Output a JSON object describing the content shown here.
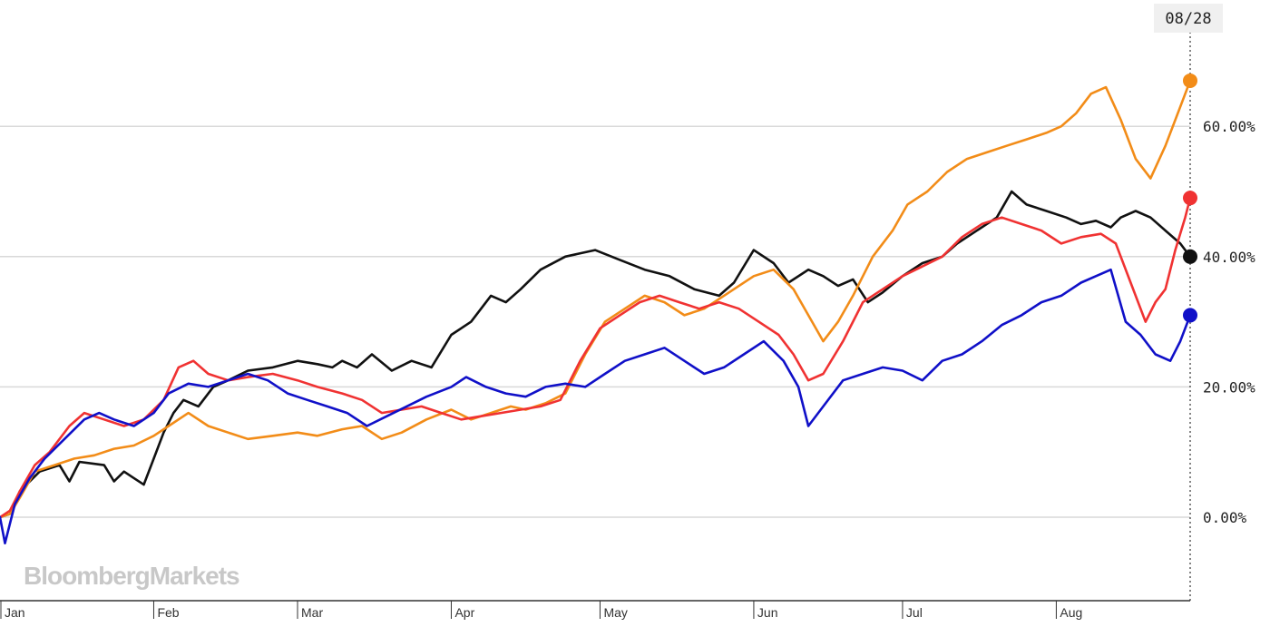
{
  "watermark": "BloombergMarkets",
  "cursor_date": "08/28",
  "chart_data": {
    "type": "line",
    "title": "",
    "xlabel": "",
    "ylabel": "",
    "x_tick_labels": [
      "Jan",
      "Feb",
      "Mar",
      "Apr",
      "May",
      "Jun",
      "Jul",
      "Aug"
    ],
    "y_tick_labels": [
      "0.00%",
      "20.00%",
      "40.00%",
      "60.00%"
    ],
    "y_ticks": [
      0,
      20,
      40,
      60
    ],
    "ylim": [
      -13,
      80
    ],
    "xlim": [
      "01-01",
      "08-28"
    ],
    "grid": true,
    "series": [
      {
        "color": "#111111",
        "points": [
          [
            "01-01",
            0
          ],
          [
            "01-03",
            0.5
          ],
          [
            "01-05",
            4
          ],
          [
            "01-09",
            7
          ],
          [
            "01-13",
            8
          ],
          [
            "01-15",
            5.5
          ],
          [
            "01-17",
            8.5
          ],
          [
            "01-22",
            8
          ],
          [
            "01-24",
            5.5
          ],
          [
            "01-26",
            7
          ],
          [
            "01-28",
            6
          ],
          [
            "01-30",
            5
          ],
          [
            "02-01",
            9
          ],
          [
            "02-03",
            13
          ],
          [
            "02-05",
            16
          ],
          [
            "02-07",
            18
          ],
          [
            "02-10",
            17
          ],
          [
            "02-13",
            20
          ],
          [
            "02-16",
            21
          ],
          [
            "02-20",
            22.5
          ],
          [
            "02-25",
            23
          ],
          [
            "03-01",
            24
          ],
          [
            "03-05",
            23.5
          ],
          [
            "03-08",
            23
          ],
          [
            "03-10",
            24
          ],
          [
            "03-13",
            23
          ],
          [
            "03-16",
            25
          ],
          [
            "03-20",
            22.5
          ],
          [
            "03-24",
            24
          ],
          [
            "03-28",
            23
          ],
          [
            "04-01",
            28
          ],
          [
            "04-05",
            30
          ],
          [
            "04-09",
            34
          ],
          [
            "04-12",
            33
          ],
          [
            "04-15",
            35
          ],
          [
            "04-19",
            38
          ],
          [
            "04-24",
            40
          ],
          [
            "04-30",
            41
          ],
          [
            "05-05",
            39.5
          ],
          [
            "05-10",
            38
          ],
          [
            "05-15",
            37
          ],
          [
            "05-20",
            35
          ],
          [
            "05-25",
            34
          ],
          [
            "05-28",
            36
          ],
          [
            "06-01",
            41
          ],
          [
            "06-05",
            39
          ],
          [
            "06-08",
            36
          ],
          [
            "06-12",
            38
          ],
          [
            "06-15",
            37
          ],
          [
            "06-18",
            35.5
          ],
          [
            "06-21",
            36.5
          ],
          [
            "06-24",
            33
          ],
          [
            "06-27",
            34.5
          ],
          [
            "07-01",
            37
          ],
          [
            "07-05",
            39
          ],
          [
            "07-09",
            40
          ],
          [
            "07-12",
            42
          ],
          [
            "07-16",
            44
          ],
          [
            "07-20",
            46
          ],
          [
            "07-23",
            50
          ],
          [
            "07-26",
            48
          ],
          [
            "07-30",
            47
          ],
          [
            "08-03",
            46
          ],
          [
            "08-06",
            45
          ],
          [
            "08-09",
            45.5
          ],
          [
            "08-12",
            44.5
          ],
          [
            "08-14",
            46
          ],
          [
            "08-17",
            47
          ],
          [
            "08-20",
            46
          ],
          [
            "08-23",
            44
          ],
          [
            "08-26",
            42
          ],
          [
            "08-28",
            40
          ]
        ]
      },
      {
        "color": "#f28c18",
        "points": [
          [
            "01-01",
            0
          ],
          [
            "01-03",
            0.5
          ],
          [
            "01-05",
            3
          ],
          [
            "01-08",
            7
          ],
          [
            "01-12",
            8
          ],
          [
            "01-16",
            9
          ],
          [
            "01-20",
            9.5
          ],
          [
            "01-24",
            10.5
          ],
          [
            "01-28",
            11
          ],
          [
            "02-01",
            12.5
          ],
          [
            "02-04",
            14
          ],
          [
            "02-08",
            16
          ],
          [
            "02-12",
            14
          ],
          [
            "02-16",
            13
          ],
          [
            "02-20",
            12
          ],
          [
            "02-25",
            12.5
          ],
          [
            "03-01",
            13
          ],
          [
            "03-05",
            12.5
          ],
          [
            "03-10",
            13.5
          ],
          [
            "03-14",
            14
          ],
          [
            "03-18",
            12
          ],
          [
            "03-22",
            13
          ],
          [
            "03-27",
            15
          ],
          [
            "04-01",
            16.5
          ],
          [
            "04-05",
            15
          ],
          [
            "04-09",
            16
          ],
          [
            "04-13",
            17
          ],
          [
            "04-16",
            16.5
          ],
          [
            "04-20",
            17.5
          ],
          [
            "04-24",
            19
          ],
          [
            "04-28",
            25
          ],
          [
            "05-02",
            30
          ],
          [
            "05-06",
            32
          ],
          [
            "05-10",
            34
          ],
          [
            "05-14",
            33
          ],
          [
            "05-18",
            31
          ],
          [
            "05-22",
            32
          ],
          [
            "05-26",
            34
          ],
          [
            "06-01",
            37
          ],
          [
            "06-05",
            38
          ],
          [
            "06-09",
            35
          ],
          [
            "06-12",
            31
          ],
          [
            "06-15",
            27
          ],
          [
            "06-18",
            30
          ],
          [
            "06-21",
            34
          ],
          [
            "06-25",
            40
          ],
          [
            "06-29",
            44
          ],
          [
            "07-02",
            48
          ],
          [
            "07-06",
            50
          ],
          [
            "07-10",
            53
          ],
          [
            "07-14",
            55
          ],
          [
            "07-18",
            56
          ],
          [
            "07-22",
            57
          ],
          [
            "07-26",
            58
          ],
          [
            "07-30",
            59
          ],
          [
            "08-02",
            60
          ],
          [
            "08-05",
            62
          ],
          [
            "08-08",
            65
          ],
          [
            "08-11",
            66
          ],
          [
            "08-14",
            61
          ],
          [
            "08-17",
            55
          ],
          [
            "08-20",
            52
          ],
          [
            "08-23",
            57
          ],
          [
            "08-26",
            63
          ],
          [
            "08-28",
            67
          ]
        ]
      },
      {
        "color": "#f03232",
        "points": [
          [
            "01-01",
            0
          ],
          [
            "01-03",
            1
          ],
          [
            "01-05",
            4
          ],
          [
            "01-08",
            8
          ],
          [
            "01-11",
            10
          ],
          [
            "01-15",
            14
          ],
          [
            "01-18",
            16
          ],
          [
            "01-22",
            15
          ],
          [
            "01-26",
            14
          ],
          [
            "01-30",
            15
          ],
          [
            "02-03",
            18
          ],
          [
            "02-06",
            23
          ],
          [
            "02-09",
            24
          ],
          [
            "02-12",
            22
          ],
          [
            "02-16",
            21
          ],
          [
            "02-20",
            21.5
          ],
          [
            "02-25",
            22
          ],
          [
            "03-01",
            21
          ],
          [
            "03-05",
            20
          ],
          [
            "03-10",
            19
          ],
          [
            "03-14",
            18
          ],
          [
            "03-18",
            16
          ],
          [
            "03-22",
            16.5
          ],
          [
            "03-26",
            17
          ],
          [
            "03-30",
            16
          ],
          [
            "04-03",
            15
          ],
          [
            "04-07",
            15.5
          ],
          [
            "04-11",
            16
          ],
          [
            "04-15",
            16.5
          ],
          [
            "04-19",
            17
          ],
          [
            "04-23",
            18
          ],
          [
            "04-27",
            24
          ],
          [
            "05-01",
            29
          ],
          [
            "05-05",
            31
          ],
          [
            "05-09",
            33
          ],
          [
            "05-13",
            34
          ],
          [
            "05-17",
            33
          ],
          [
            "05-21",
            32
          ],
          [
            "05-25",
            33
          ],
          [
            "05-29",
            32
          ],
          [
            "06-02",
            30
          ],
          [
            "06-06",
            28
          ],
          [
            "06-09",
            25
          ],
          [
            "06-12",
            21
          ],
          [
            "06-15",
            22
          ],
          [
            "06-19",
            27
          ],
          [
            "06-23",
            33
          ],
          [
            "06-27",
            35
          ],
          [
            "07-01",
            37
          ],
          [
            "07-05",
            38.5
          ],
          [
            "07-09",
            40
          ],
          [
            "07-13",
            43
          ],
          [
            "07-17",
            45
          ],
          [
            "07-21",
            46
          ],
          [
            "07-25",
            45
          ],
          [
            "07-29",
            44
          ],
          [
            "08-02",
            42
          ],
          [
            "08-06",
            43
          ],
          [
            "08-10",
            43.5
          ],
          [
            "08-13",
            42
          ],
          [
            "08-16",
            36
          ],
          [
            "08-19",
            30
          ],
          [
            "08-21",
            33
          ],
          [
            "08-23",
            35
          ],
          [
            "08-25",
            41
          ],
          [
            "08-27",
            46
          ],
          [
            "08-28",
            49
          ]
        ]
      },
      {
        "color": "#1010c8",
        "points": [
          [
            "01-01",
            0
          ],
          [
            "01-02",
            -4
          ],
          [
            "01-04",
            2
          ],
          [
            "01-07",
            6
          ],
          [
            "01-10",
            9
          ],
          [
            "01-14",
            12
          ],
          [
            "01-18",
            15
          ],
          [
            "01-21",
            16
          ],
          [
            "01-24",
            15
          ],
          [
            "01-28",
            14
          ],
          [
            "02-01",
            16
          ],
          [
            "02-04",
            19
          ],
          [
            "02-08",
            20.5
          ],
          [
            "02-12",
            20
          ],
          [
            "02-16",
            21
          ],
          [
            "02-20",
            22
          ],
          [
            "02-24",
            21
          ],
          [
            "02-28",
            19
          ],
          [
            "03-03",
            18
          ],
          [
            "03-07",
            17
          ],
          [
            "03-11",
            16
          ],
          [
            "03-15",
            14
          ],
          [
            "03-19",
            15.5
          ],
          [
            "03-23",
            17
          ],
          [
            "03-27",
            18.5
          ],
          [
            "04-01",
            20
          ],
          [
            "04-04",
            21.5
          ],
          [
            "04-08",
            20
          ],
          [
            "04-12",
            19
          ],
          [
            "04-16",
            18.5
          ],
          [
            "04-20",
            20
          ],
          [
            "04-24",
            20.5
          ],
          [
            "04-28",
            20
          ],
          [
            "05-02",
            22
          ],
          [
            "05-06",
            24
          ],
          [
            "05-10",
            25
          ],
          [
            "05-14",
            26
          ],
          [
            "05-18",
            24
          ],
          [
            "05-22",
            22
          ],
          [
            "05-26",
            23
          ],
          [
            "05-30",
            25
          ],
          [
            "06-03",
            27
          ],
          [
            "06-07",
            24
          ],
          [
            "06-10",
            20
          ],
          [
            "06-12",
            14
          ],
          [
            "06-15",
            17
          ],
          [
            "06-19",
            21
          ],
          [
            "06-23",
            22
          ],
          [
            "06-27",
            23
          ],
          [
            "07-01",
            22.5
          ],
          [
            "07-05",
            21
          ],
          [
            "07-09",
            24
          ],
          [
            "07-13",
            25
          ],
          [
            "07-17",
            27
          ],
          [
            "07-21",
            29.5
          ],
          [
            "07-25",
            31
          ],
          [
            "07-29",
            33
          ],
          [
            "08-02",
            34
          ],
          [
            "08-06",
            36
          ],
          [
            "08-09",
            37
          ],
          [
            "08-12",
            38
          ],
          [
            "08-15",
            30
          ],
          [
            "08-18",
            28
          ],
          [
            "08-21",
            25
          ],
          [
            "08-24",
            24
          ],
          [
            "08-26",
            27
          ],
          [
            "08-28",
            31
          ]
        ]
      }
    ]
  }
}
